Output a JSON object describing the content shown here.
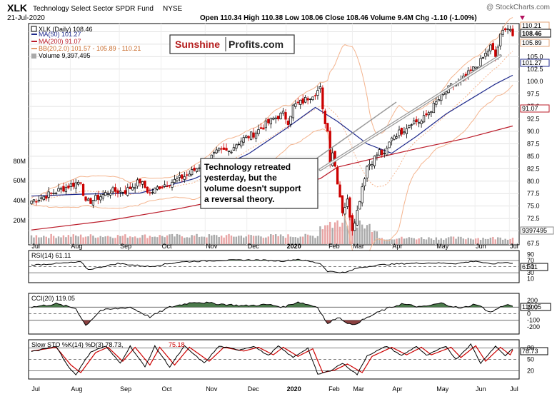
{
  "header": {
    "symbol": "XLK",
    "fund_name": "Technology Select Sector SPDR Fund",
    "exchange": "NYSE",
    "date": "21-Jul-2020",
    "watermark": "@ StockCharts.com",
    "quote": "Open 110.34  High 110.38  Low 108.06  Close 108.46  Volume 9.4M  Chg -1.10 (-1.00%)"
  },
  "legend": {
    "xlk": "XLK (Daily) 108.46",
    "ma50": "MA(50) 101.27",
    "ma200": "MA(200) 91.07",
    "bb": "BB(20,2.0) 101.57 - 105.89 - 110.21",
    "volume": "Volume 9,397,495"
  },
  "logo": {
    "part1": "Sunshine",
    "part2": "Profits.com"
  },
  "annotation": {
    "lines": [
      "Technology retreated",
      "yesterday, but the",
      "volume doesn't support",
      "a reversal theory."
    ]
  },
  "badges": {
    "bb_upper": "110.21",
    "close": "108.46",
    "bb_mid": "105.89",
    "ma50": "101.27",
    "ma200": "91.07",
    "volume": "9397495",
    "rsi": "61.11",
    "cci": "119.05",
    "sto": "78.73"
  },
  "colors": {
    "up": "#000000",
    "down": "#cc0000",
    "ma50": "#1f2a8c",
    "ma200": "#bb1c2a",
    "bb": "#f4b48e",
    "volume_up": "#a9a9a9",
    "volume_down": "#e8a3a3",
    "rsi_fill": "#4b7a4b",
    "cci_neg": "#8a4040",
    "sto_d": "#cc0000"
  },
  "indicators": {
    "rsi_label": "RSI(14) 61.11",
    "cci_label": "CCI(20) 119.05",
    "sto_label_main": "Slow STO %K(14) %D(3) 78.73,",
    "sto_label_d": "75.18"
  },
  "chart_data": [
    {
      "type": "line",
      "subtype": "candlestick",
      "months": [
        "Jul",
        "Aug",
        "Sep",
        "Oct",
        "Nov",
        "Dec",
        "2020",
        "Feb",
        "Mar",
        "Apr",
        "May",
        "Jun",
        "Jul"
      ],
      "price_ticks": [
        "110.0",
        "107.5",
        "105.0",
        "102.5",
        "100.0",
        "97.5",
        "95.0",
        "92.5",
        "90.0",
        "87.5",
        "85.0",
        "82.5",
        "80.0",
        "77.5",
        "75.0",
        "72.5",
        "70.0",
        "67.5"
      ],
      "volume_ticks": [
        "80M",
        "60M",
        "40M",
        "20M"
      ],
      "ylim": [
        67.5,
        111.5
      ],
      "close_path": [
        [
          0,
          76
        ],
        [
          8,
          77.5
        ],
        [
          15,
          79
        ],
        [
          20,
          80
        ],
        [
          22,
          75.5
        ],
        [
          26,
          76.5
        ],
        [
          32,
          78
        ],
        [
          38,
          78
        ],
        [
          44,
          80
        ],
        [
          48,
          77.5
        ],
        [
          52,
          79
        ],
        [
          55,
          79.5
        ],
        [
          60,
          80.5
        ],
        [
          64,
          81.5
        ],
        [
          68,
          83
        ],
        [
          72,
          84.5
        ],
        [
          76,
          86
        ],
        [
          80,
          86
        ],
        [
          83,
          87.5
        ],
        [
          86,
          88.5
        ],
        [
          90,
          89.5
        ],
        [
          94,
          91
        ],
        [
          98,
          92.5
        ],
        [
          102,
          93.5
        ],
        [
          104,
          92
        ],
        [
          106,
          95
        ],
        [
          110,
          96
        ],
        [
          114,
          97.5
        ],
        [
          117,
          98.5
        ],
        [
          118,
          94
        ],
        [
          120,
          90
        ],
        [
          121,
          84
        ],
        [
          122,
          86
        ],
        [
          124,
          80
        ],
        [
          126,
          74
        ],
        [
          128,
          76
        ],
        [
          130,
          70.5
        ],
        [
          132,
          74
        ],
        [
          134,
          79
        ],
        [
          136,
          83
        ],
        [
          138,
          84
        ],
        [
          141,
          86
        ],
        [
          143,
          85
        ],
        [
          146,
          89
        ],
        [
          150,
          90
        ],
        [
          154,
          92
        ],
        [
          158,
          92
        ],
        [
          162,
          94.5
        ],
        [
          166,
          97
        ],
        [
          170,
          99
        ],
        [
          174,
          100
        ],
        [
          178,
          102
        ],
        [
          182,
          104
        ],
        [
          186,
          107
        ],
        [
          188,
          105
        ],
        [
          190,
          109
        ],
        [
          192,
          111
        ],
        [
          194,
          110.5
        ],
        [
          195,
          108.5
        ]
      ],
      "ma50_path": [
        [
          0,
          77
        ],
        [
          22,
          77.4
        ],
        [
          44,
          77.6
        ],
        [
          66,
          80.5
        ],
        [
          88,
          85.5
        ],
        [
          103,
          90.5
        ],
        [
          115,
          94.8
        ],
        [
          124,
          92
        ],
        [
          136,
          87.5
        ],
        [
          146,
          85.6
        ],
        [
          156,
          89
        ],
        [
          168,
          93.5
        ],
        [
          178,
          96.5
        ],
        [
          188,
          99.5
        ],
        [
          195,
          101.27
        ]
      ],
      "ma200_path": [
        [
          0,
          70.2
        ],
        [
          30,
          72
        ],
        [
          60,
          74.5
        ],
        [
          90,
          77.5
        ],
        [
          117,
          80.5
        ],
        [
          124,
          82.8
        ],
        [
          140,
          84.7
        ],
        [
          156,
          86.5
        ],
        [
          176,
          88.6
        ],
        [
          195,
          91.07
        ]
      ],
      "trendline": [
        [
          117,
          82.3
        ],
        [
          190,
          105.2
        ]
      ]
    },
    {
      "type": "line",
      "name": "RSI(14)",
      "ticks": [
        "90",
        "70",
        "50",
        "30",
        "10"
      ],
      "ylim": [
        0,
        100
      ],
      "values": [
        [
          0,
          55
        ],
        [
          20,
          65
        ],
        [
          23,
          40
        ],
        [
          35,
          60
        ],
        [
          48,
          50
        ],
        [
          60,
          65
        ],
        [
          76,
          70
        ],
        [
          90,
          72
        ],
        [
          102,
          68
        ],
        [
          108,
          74
        ],
        [
          117,
          60
        ],
        [
          120,
          35
        ],
        [
          127,
          30
        ],
        [
          132,
          45
        ],
        [
          140,
          55
        ],
        [
          152,
          60
        ],
        [
          162,
          62
        ],
        [
          172,
          60
        ],
        [
          180,
          68
        ],
        [
          186,
          58
        ],
        [
          192,
          64
        ],
        [
          195,
          61.11
        ]
      ]
    },
    {
      "type": "line",
      "name": "CCI(20)",
      "ticks": [
        "200",
        "100",
        "0",
        "-100",
        "-200"
      ],
      "ylim": [
        -300,
        300
      ],
      "values": [
        [
          0,
          100
        ],
        [
          10,
          150
        ],
        [
          18,
          80
        ],
        [
          22,
          -180
        ],
        [
          28,
          50
        ],
        [
          40,
          100
        ],
        [
          48,
          -50
        ],
        [
          56,
          100
        ],
        [
          66,
          180
        ],
        [
          76,
          150
        ],
        [
          86,
          120
        ],
        [
          96,
          140
        ],
        [
          102,
          100
        ],
        [
          108,
          180
        ],
        [
          116,
          100
        ],
        [
          120,
          -160
        ],
        [
          124,
          -50
        ],
        [
          130,
          -180
        ],
        [
          134,
          -100
        ],
        [
          142,
          50
        ],
        [
          150,
          150
        ],
        [
          158,
          100
        ],
        [
          166,
          160
        ],
        [
          174,
          80
        ],
        [
          180,
          150
        ],
        [
          186,
          20
        ],
        [
          192,
          140
        ],
        [
          195,
          119.05
        ]
      ]
    },
    {
      "type": "line",
      "name": "Slow STO %K(14) %D(3)",
      "ticks": [
        "80",
        "50",
        "20"
      ],
      "ylim": [
        0,
        100
      ],
      "values": [
        [
          0,
          70
        ],
        [
          10,
          85
        ],
        [
          15,
          30
        ],
        [
          18,
          10
        ],
        [
          24,
          70
        ],
        [
          30,
          85
        ],
        [
          36,
          40
        ],
        [
          40,
          85
        ],
        [
          46,
          30
        ],
        [
          50,
          85
        ],
        [
          56,
          30
        ],
        [
          62,
          85
        ],
        [
          70,
          40
        ],
        [
          76,
          85
        ],
        [
          84,
          75
        ],
        [
          90,
          85
        ],
        [
          96,
          60
        ],
        [
          100,
          85
        ],
        [
          106,
          55
        ],
        [
          112,
          80
        ],
        [
          116,
          10
        ],
        [
          121,
          20
        ],
        [
          126,
          40
        ],
        [
          132,
          10
        ],
        [
          136,
          60
        ],
        [
          144,
          85
        ],
        [
          150,
          60
        ],
        [
          156,
          85
        ],
        [
          160,
          60
        ],
        [
          168,
          85
        ],
        [
          172,
          50
        ],
        [
          178,
          90
        ],
        [
          182,
          40
        ],
        [
          188,
          85
        ],
        [
          192,
          60
        ],
        [
          195,
          78.73
        ]
      ],
      "values_d": [
        [
          0,
          72
        ],
        [
          10,
          82
        ],
        [
          16,
          35
        ],
        [
          20,
          15
        ],
        [
          26,
          68
        ],
        [
          31,
          82
        ],
        [
          37,
          45
        ],
        [
          42,
          82
        ],
        [
          48,
          35
        ],
        [
          52,
          82
        ],
        [
          58,
          35
        ],
        [
          64,
          82
        ],
        [
          72,
          45
        ],
        [
          78,
          82
        ],
        [
          86,
          72
        ],
        [
          92,
          82
        ],
        [
          98,
          62
        ],
        [
          102,
          82
        ],
        [
          108,
          58
        ],
        [
          114,
          78
        ],
        [
          118,
          15
        ],
        [
          123,
          22
        ],
        [
          128,
          38
        ],
        [
          134,
          15
        ],
        [
          138,
          58
        ],
        [
          146,
          82
        ],
        [
          152,
          62
        ],
        [
          158,
          82
        ],
        [
          162,
          62
        ],
        [
          170,
          82
        ],
        [
          174,
          55
        ],
        [
          180,
          86
        ],
        [
          184,
          45
        ],
        [
          190,
          82
        ],
        [
          194,
          62
        ],
        [
          195,
          75.18
        ]
      ]
    }
  ]
}
